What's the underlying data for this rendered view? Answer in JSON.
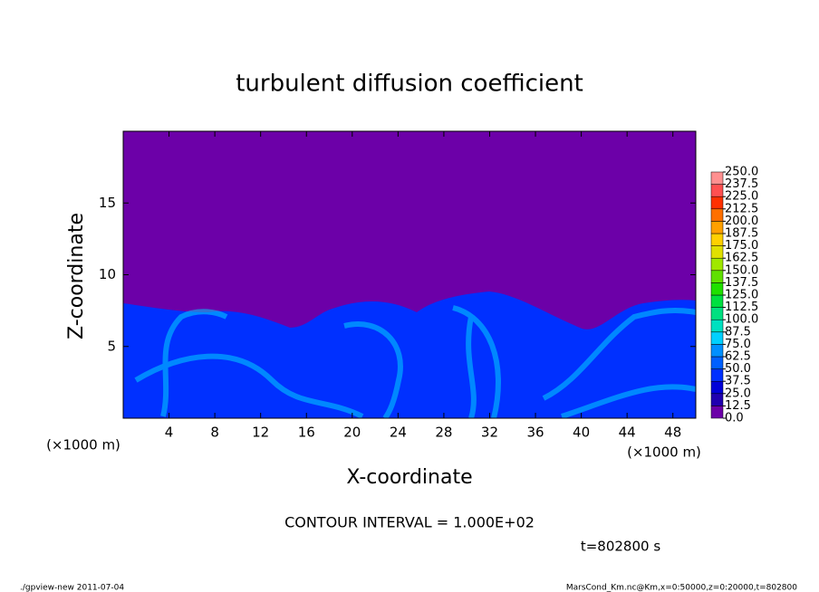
{
  "chart_data": {
    "type": "contour",
    "title": "turbulent diffusion coefficient",
    "xlabel": "X-coordinate",
    "ylabel": "Z-coordinate",
    "x_unit_label": "(×1000 m)",
    "y_unit_label": "(×1000 m)",
    "xlim": [
      0,
      50
    ],
    "ylim": [
      0,
      20
    ],
    "xticks": [
      4,
      8,
      12,
      16,
      20,
      24,
      28,
      32,
      36,
      40,
      44,
      48
    ],
    "yticks": [
      5,
      10,
      15
    ],
    "colorbar": {
      "levels": [
        {
          "value": 0,
          "label": "0.0"
        },
        {
          "value": 12.5,
          "label": "12.5"
        },
        {
          "value": 25,
          "label": "25.0"
        },
        {
          "value": 37.5,
          "label": "37.5"
        },
        {
          "value": 50,
          "label": "50.0"
        },
        {
          "value": 62.5,
          "label": "62.5"
        },
        {
          "value": 75,
          "label": "75.0"
        },
        {
          "value": 87.5,
          "label": "87.5"
        },
        {
          "value": 100,
          "label": "100.0"
        },
        {
          "value": 112.5,
          "label": "112.5"
        },
        {
          "value": 125,
          "label": "125.0"
        },
        {
          "value": 137.5,
          "label": "137.5"
        },
        {
          "value": 150,
          "label": "150.0"
        },
        {
          "value": 162.5,
          "label": "162.5"
        },
        {
          "value": 175,
          "label": "175.0"
        },
        {
          "value": 187.5,
          "label": "187.5"
        },
        {
          "value": 200,
          "label": "200.0"
        },
        {
          "value": 212.5,
          "label": "212.5"
        },
        {
          "value": 225,
          "label": "225.0"
        },
        {
          "value": 237.5,
          "label": "237.5"
        },
        {
          "value": 250,
          "label": "250.0"
        }
      ],
      "colors": [
        "#6c00a8",
        "#2000b0",
        "#0000d8",
        "#0030ff",
        "#0060ff",
        "#0090ff",
        "#00d0ff",
        "#00e0c0",
        "#00e080",
        "#00e040",
        "#20e000",
        "#60e000",
        "#a0e800",
        "#e0e000",
        "#ffd000",
        "#ffa000",
        "#ff7000",
        "#ff3000",
        "#ff5050",
        "#ff9090"
      ]
    },
    "contour_interval": "CONTOUR INTERVAL = 1.000E+02",
    "time_label": "t=802800 s",
    "footer_left": "./gpview-new  2011-07-04",
    "footer_right": "MarsCond_Km.nc@Km,x=0:50000,z=0:20000,t=802800"
  }
}
